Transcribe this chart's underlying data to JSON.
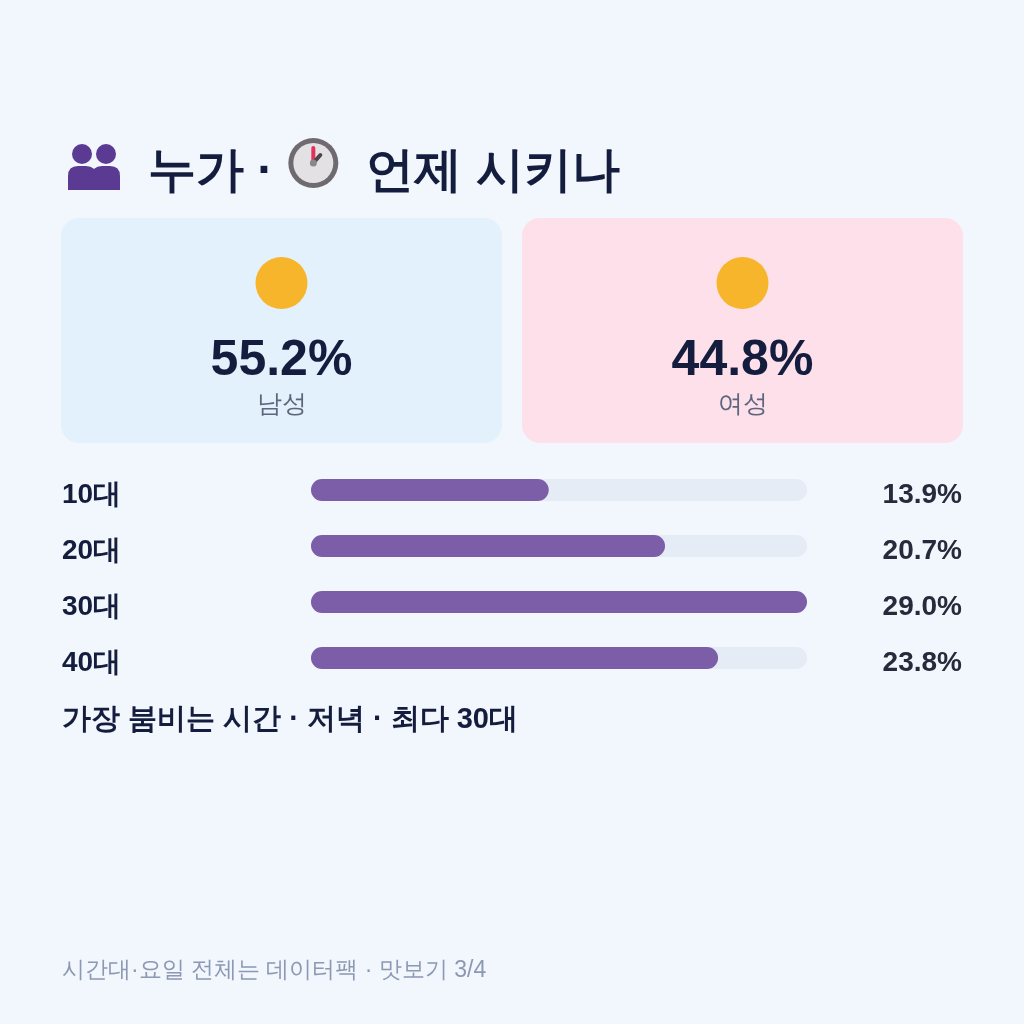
{
  "chart_data": [
    {
      "type": "other",
      "title": "누가 · 언제 시키나",
      "categories": [
        "남성",
        "여성"
      ],
      "value_labels": [
        "55.2%",
        "44.8%"
      ],
      "colors": [
        "#e3f1fc",
        "#fee0eb"
      ]
    },
    {
      "type": "bar",
      "orientation": "horizontal",
      "categories": [
        "10대",
        "20대",
        "30대",
        "40대"
      ],
      "values": [
        13.9,
        20.7,
        29.0,
        23.8
      ],
      "value_labels": [
        "13.9%",
        "20.7%",
        "29.0%",
        "23.8%"
      ],
      "color": "#7b5ea7",
      "xlim": [
        0,
        29.0
      ],
      "annotations": [
        "가장 붐비는 시간 · 저녁 · 최다 30대",
        "시간대·요일 전체는 데이터팩 · 맛보기 3/4"
      ]
    }
  ]
}
